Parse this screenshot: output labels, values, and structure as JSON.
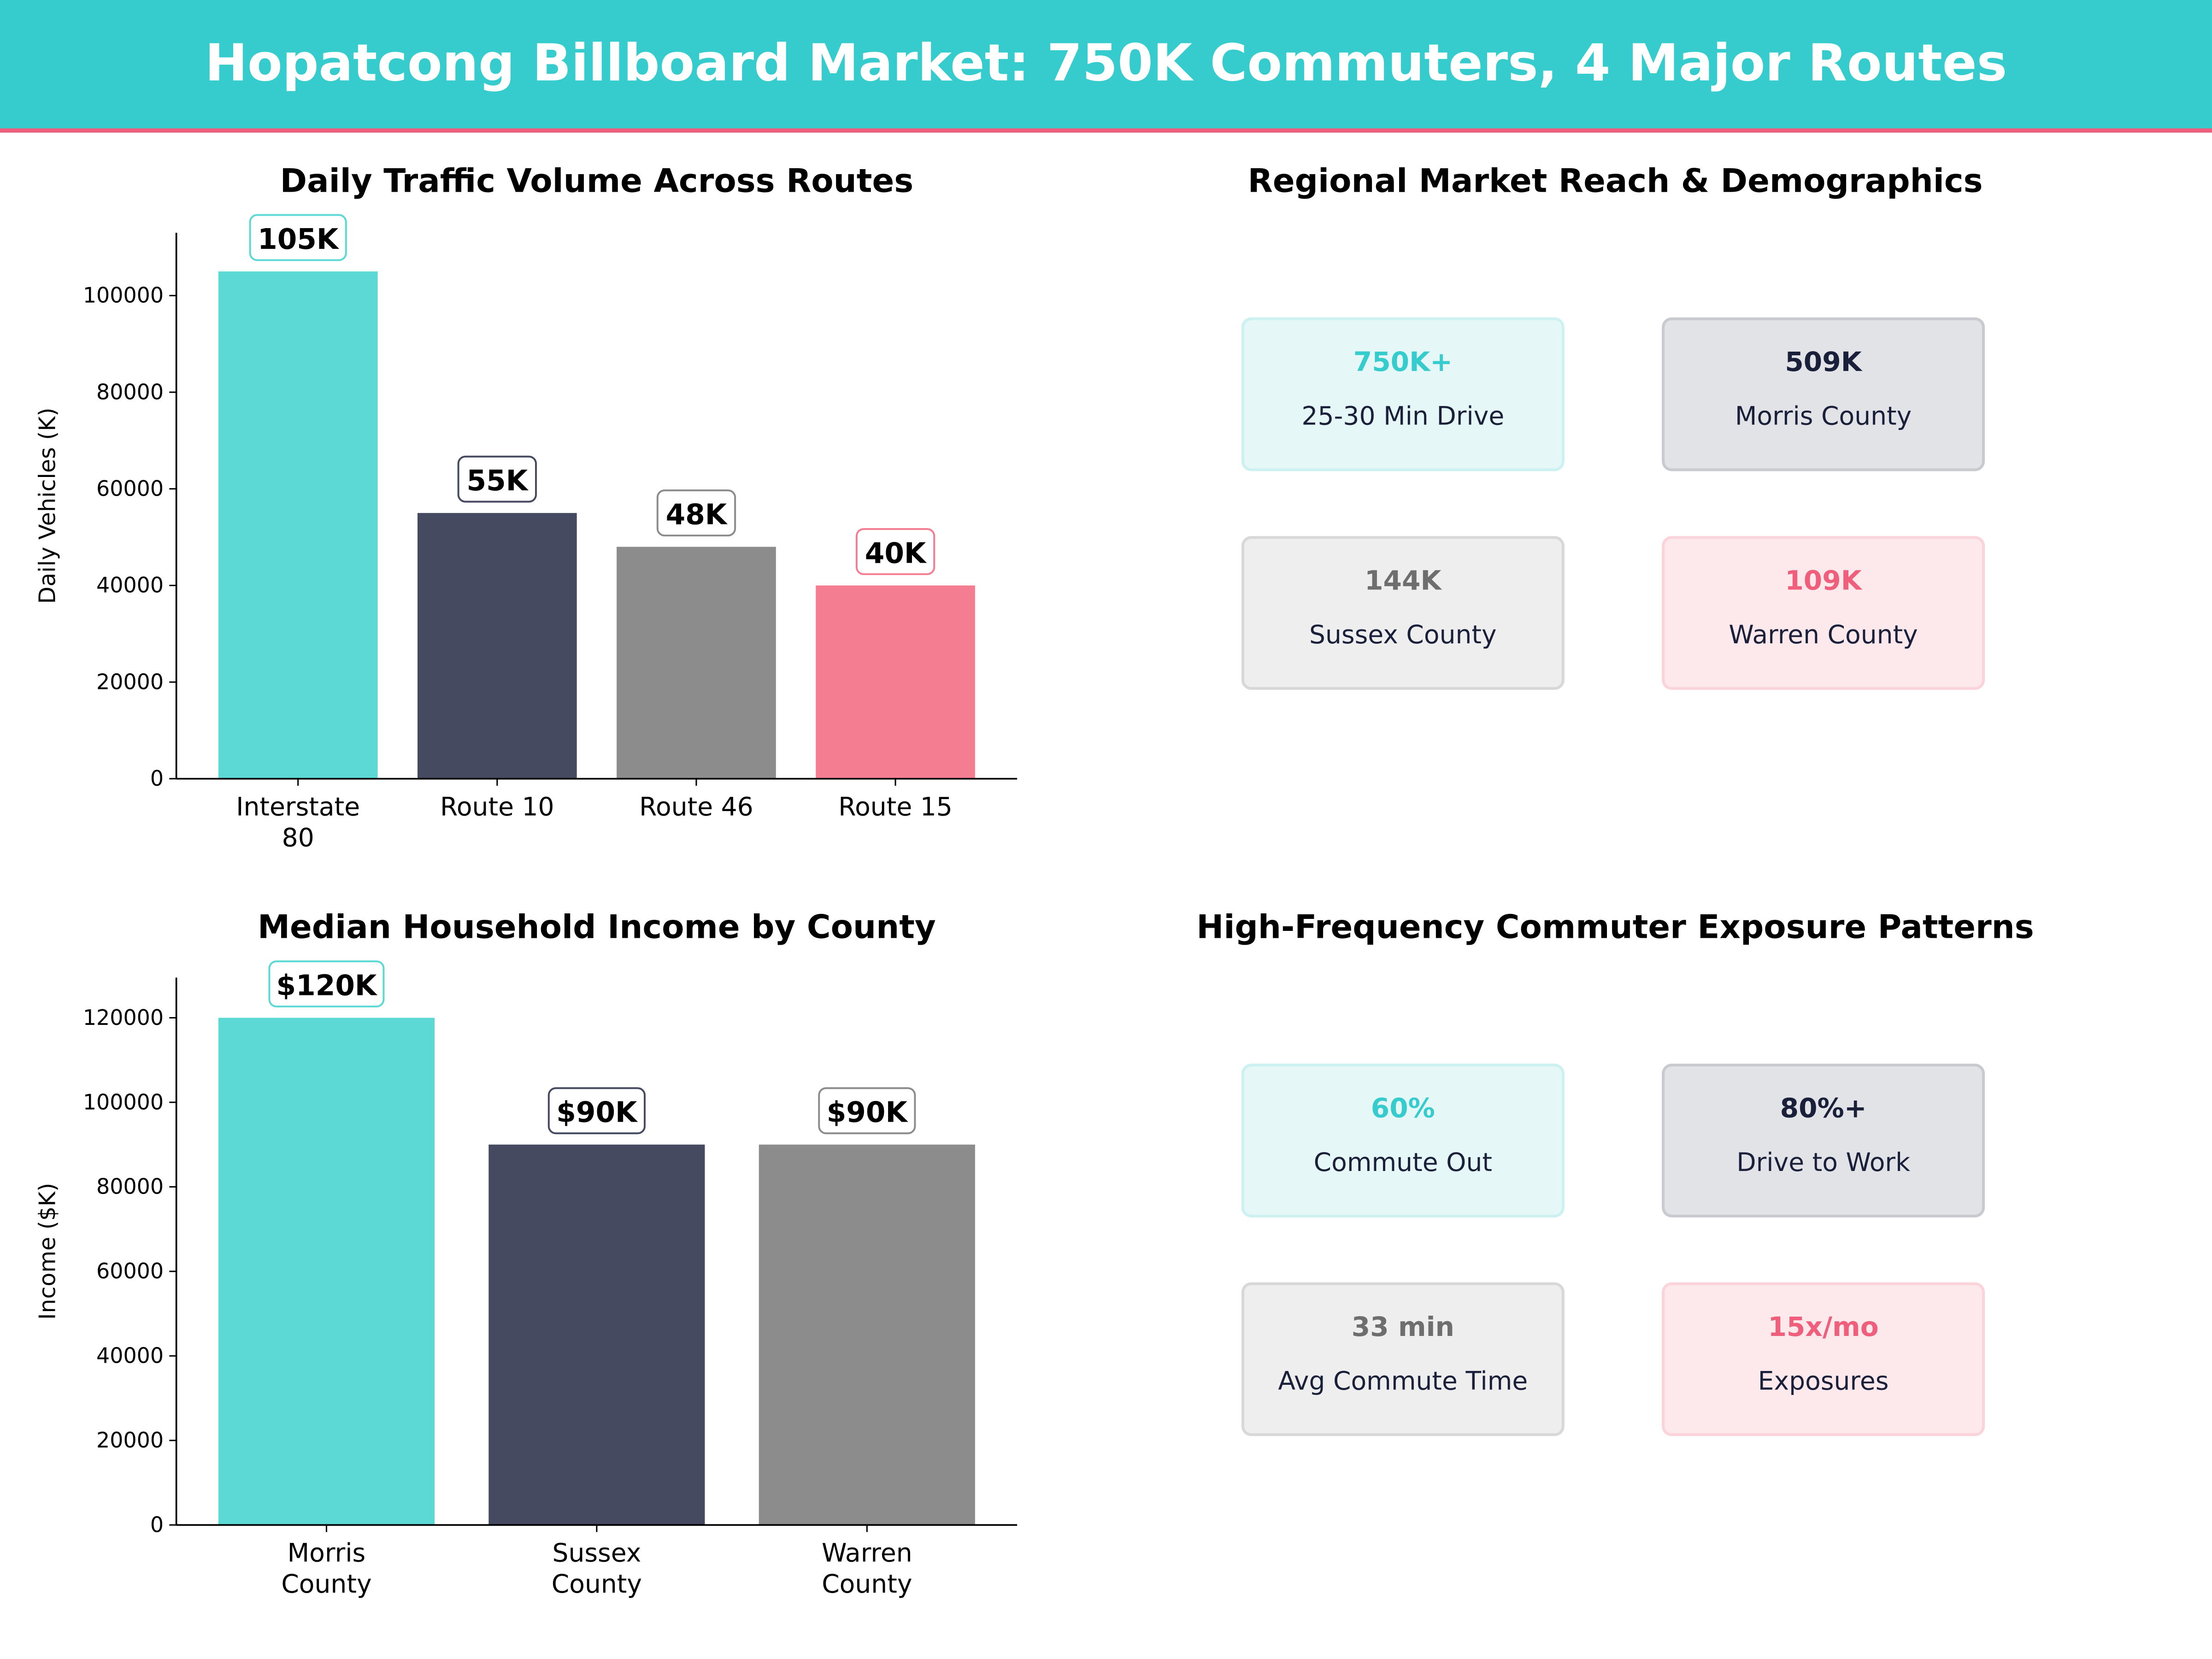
{
  "header": {
    "title": "Hopatcong Billboard Market: 750K Commuters, 4 Major Routes"
  },
  "colors": {
    "teal": "#5cd8d5",
    "navy": "#464a60",
    "gray": "#8c8c8c",
    "pink": "#f57d92",
    "banner": "#36cbcc",
    "accent_line": "#ef5f7b"
  },
  "chart_data": [
    {
      "type": "bar",
      "title": "Daily Traffic Volume Across Routes",
      "xlabel": "",
      "ylabel": "Daily Vehicles (K)",
      "categories": [
        "Interstate\n80",
        "Route 10",
        "Route 46",
        "Route 15"
      ],
      "values": [
        105000,
        55000,
        48000,
        40000
      ],
      "data_labels": [
        "105K",
        "55K",
        "48K",
        "40K"
      ],
      "bar_colors": [
        "#5cd8d5",
        "#464a60",
        "#8c8c8c",
        "#f57d92"
      ],
      "label_border_colors": [
        "#5cd8d5",
        "#464a60",
        "#8c8c8c",
        "#f57d92"
      ],
      "yticks": [
        0,
        20000,
        40000,
        60000,
        80000,
        100000
      ],
      "ylim": [
        0,
        113000
      ],
      "grid": false
    },
    {
      "type": "bar",
      "title": "Median Household Income by County",
      "xlabel": "",
      "ylabel": "Income ($K)",
      "categories": [
        "Morris\nCounty",
        "Sussex\nCounty",
        "Warren\nCounty"
      ],
      "values": [
        120000,
        90000,
        90000
      ],
      "data_labels": [
        "$120K",
        "$90K",
        "$90K"
      ],
      "bar_colors": [
        "#5cd8d5",
        "#464a60",
        "#8c8c8c"
      ],
      "label_border_colors": [
        "#5cd8d5",
        "#464a60",
        "#8c8c8c"
      ],
      "yticks": [
        0,
        20000,
        40000,
        60000,
        80000,
        100000,
        120000
      ],
      "ylim": [
        0,
        129500
      ],
      "grid": false
    }
  ],
  "reach": {
    "title": "Regional Market Reach & Demographics",
    "cards": [
      {
        "value": "750K+",
        "label": "25-30 Min Drive",
        "value_color": "#36cbcc",
        "bg": "#e6f7f7",
        "border": "#cdf1f1"
      },
      {
        "value": "509K",
        "label": "Morris County",
        "value_color": "#1a1f3a",
        "bg": "#e2e3e7",
        "border": "#c9cad0"
      },
      {
        "value": "144K",
        "label": "Sussex County",
        "value_color": "#6e6e6e",
        "bg": "#eeeeee",
        "border": "#d8d8d8"
      },
      {
        "value": "109K",
        "label": "Warren County",
        "value_color": "#ef5f7b",
        "bg": "#fde9ec",
        "border": "#fbd3da"
      }
    ]
  },
  "exposure": {
    "title": "High-Frequency Commuter Exposure Patterns",
    "cards": [
      {
        "value": "60%",
        "label": "Commute Out",
        "value_color": "#36cbcc",
        "bg": "#e6f7f7",
        "border": "#cdf1f1"
      },
      {
        "value": "80%+",
        "label": "Drive to Work",
        "value_color": "#1a1f3a",
        "bg": "#e2e3e7",
        "border": "#c9cad0"
      },
      {
        "value": "33 min",
        "label": "Avg Commute Time",
        "value_color": "#6e6e6e",
        "bg": "#eeeeee",
        "border": "#d8d8d8"
      },
      {
        "value": "15x/mo",
        "label": "Exposures",
        "value_color": "#ef5f7b",
        "bg": "#fde9ec",
        "border": "#fbd3da"
      }
    ]
  }
}
